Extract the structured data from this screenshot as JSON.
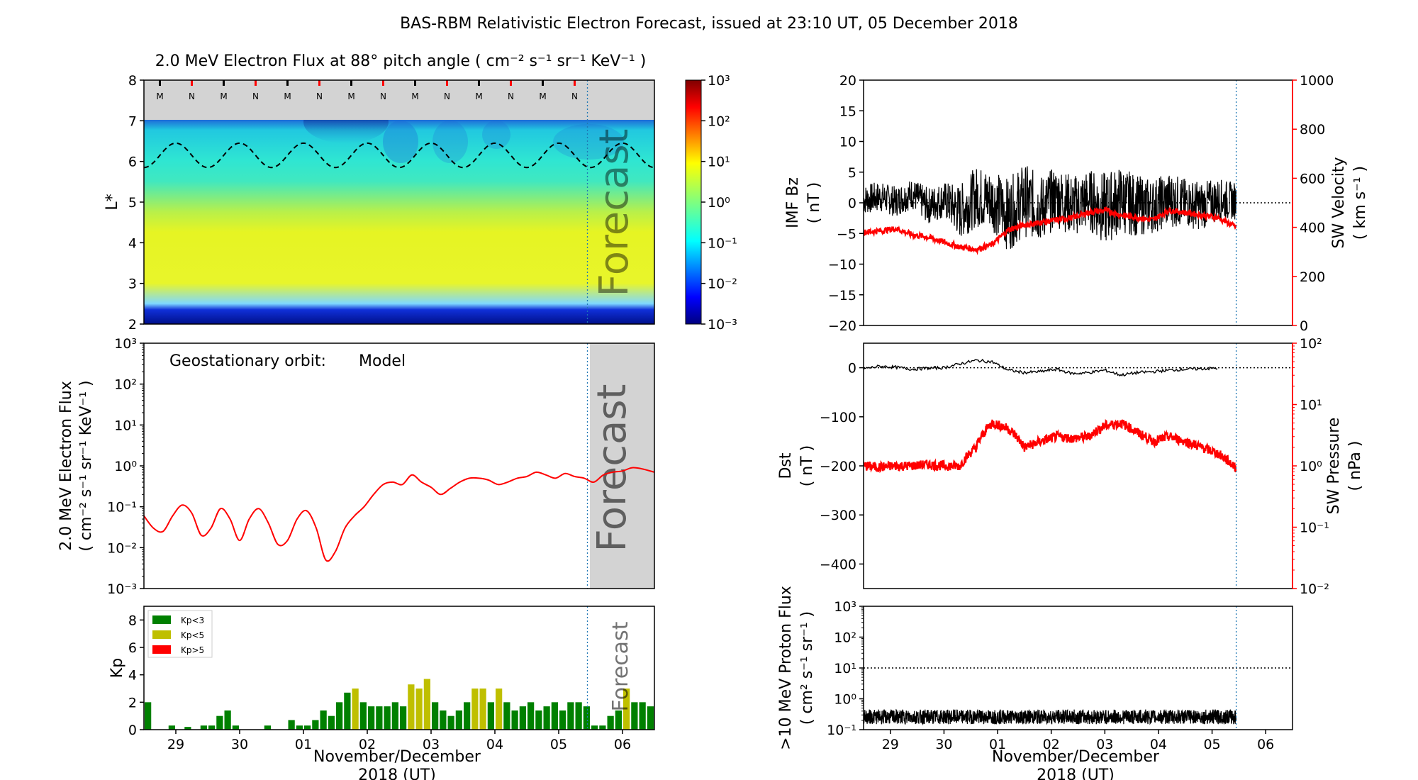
{
  "title": "BAS-RBM Relativistic Electron Forecast, issued at 23:10 UT, 05 December 2018",
  "colors": {
    "red": "#ff0000",
    "green": "#008000",
    "olive": "#bfbf00",
    "forecast_gray": "#d3d3d3",
    "line_blue": "#1f77b4"
  },
  "time_axis": {
    "ticks": [
      "29",
      "30",
      "01",
      "02",
      "03",
      "04",
      "05",
      "06"
    ],
    "label_line1": "November/December",
    "label_line2": "2018 (UT)",
    "range_days": [
      -0.5,
      7.5
    ],
    "issue_day": 6.45
  },
  "forecast_label": "Forecast",
  "panels": {
    "lstar": {
      "title": "2.0 MeV Electron Flux at 88° pitch angle ( cm⁻² s⁻¹ sr⁻¹ KeV⁻¹ )",
      "ylabel": "L*",
      "yticks": [
        "2",
        "3",
        "4",
        "5",
        "6",
        "7",
        "8"
      ],
      "mn_markers": [
        "M",
        "N",
        "M",
        "N",
        "M",
        "N",
        "M",
        "N",
        "M",
        "N",
        "M",
        "N",
        "M",
        "N"
      ],
      "colorbar_ticks": [
        "10³",
        "10²",
        "10¹",
        "10⁰",
        "10⁻¹",
        "10⁻²",
        "10⁻³"
      ]
    },
    "geo": {
      "ylabel_line1": "2.0 MeV Electron Flux",
      "ylabel_line2": "( cm⁻² s⁻¹ sr⁻¹ KeV⁻¹ )",
      "yticks": [
        "10³",
        "10²",
        "10¹",
        "10⁰",
        "10⁻¹",
        "10⁻²",
        "10⁻³"
      ],
      "annotation_prefix": "Geostationary orbit:",
      "annotation_model": "Model"
    },
    "kp": {
      "ylabel": "Kp",
      "yticks": [
        "0",
        "2",
        "4",
        "6",
        "8"
      ],
      "legend": [
        "Kp<3",
        "Kp<5",
        "Kp>5"
      ]
    },
    "imf": {
      "ylabel_line1": "IMF Bz",
      "ylabel_line2": "( nT )",
      "yticks": [
        "20",
        "15",
        "10",
        "5",
        "0",
        "−5",
        "−10",
        "−15",
        "−20"
      ],
      "right_ylabel_line1": "SW Velocity",
      "right_ylabel_line2": "( km s⁻¹ )",
      "right_yticks": [
        "1000",
        "800",
        "600",
        "400",
        "200",
        "0"
      ]
    },
    "dst": {
      "ylabel_line1": "Dst",
      "ylabel_line2": "( nT )",
      "yticks": [
        "0",
        "−100",
        "−200",
        "−300",
        "−400"
      ],
      "right_ylabel_line1": "SW Pressure",
      "right_ylabel_line2": "( nPa )",
      "right_yticks": [
        "10²",
        "10¹",
        "10⁰",
        "10⁻¹",
        "10⁻²"
      ]
    },
    "proton": {
      "ylabel_line1": ">10 MeV Proton Flux",
      "ylabel_line2": "( cm² s⁻¹ sr⁻¹ )",
      "yticks": [
        "10³",
        "10²",
        "10¹",
        "10⁰",
        "10⁻¹"
      ]
    }
  },
  "chart_data": [
    {
      "type": "heatmap",
      "name": "L* electron flux",
      "x_range_days": [
        -0.5,
        7.5
      ],
      "ylim": [
        2,
        8
      ],
      "color_scale": "log",
      "clim": [
        0.001,
        1000
      ],
      "scale": "jet",
      "features": {
        "inner_zone_L": [
          2,
          3.2
        ],
        "slot_edge_L": 3.3,
        "plateau_L": [
          3.6,
          4.6
        ],
        "model_upper_boundary_L": 7,
        "geo_orbit_L_range": [
          5.85,
          6.45
        ]
      }
    },
    {
      "type": "line",
      "name": "Geostationary orbit Model",
      "yscale": "log",
      "ylim": [
        0.001,
        1000
      ],
      "x": [
        -0.5,
        -0.35,
        -0.2,
        -0.05,
        0.1,
        0.25,
        0.4,
        0.55,
        0.7,
        0.85,
        1.0,
        1.15,
        1.3,
        1.45,
        1.6,
        1.75,
        1.9,
        2.05,
        2.2,
        2.35,
        2.5,
        2.65,
        2.8,
        2.95,
        3.1,
        3.25,
        3.4,
        3.55,
        3.7,
        3.85,
        4.0,
        4.15,
        4.3,
        4.45,
        4.6,
        4.75,
        4.9,
        5.05,
        5.2,
        5.35,
        5.5,
        5.65,
        5.8,
        5.95,
        6.1,
        6.25,
        6.4,
        6.55,
        6.7,
        6.85,
        7.0,
        7.15,
        7.3,
        7.5
      ],
      "y": [
        0.06,
        0.03,
        0.025,
        0.06,
        0.11,
        0.07,
        0.02,
        0.03,
        0.09,
        0.05,
        0.015,
        0.05,
        0.09,
        0.04,
        0.012,
        0.015,
        0.05,
        0.08,
        0.03,
        0.005,
        0.008,
        0.03,
        0.06,
        0.1,
        0.2,
        0.35,
        0.4,
        0.35,
        0.6,
        0.4,
        0.3,
        0.2,
        0.28,
        0.4,
        0.5,
        0.5,
        0.45,
        0.35,
        0.4,
        0.5,
        0.55,
        0.7,
        0.6,
        0.5,
        0.65,
        0.55,
        0.5,
        0.4,
        0.6,
        0.7,
        0.75,
        0.9,
        0.85,
        0.7
      ]
    },
    {
      "type": "bar",
      "name": "Kp",
      "bar_width_hours": 3,
      "x_start_day": -0.5,
      "values": [
        2.0,
        0.0,
        0.0,
        0.3,
        0.0,
        0.2,
        0.0,
        0.3,
        0.3,
        1.0,
        1.4,
        0.3,
        0.0,
        0.0,
        0.0,
        0.3,
        0.0,
        0.0,
        0.7,
        0.3,
        0.3,
        0.7,
        1.4,
        1.0,
        2.0,
        2.7,
        3.0,
        2.0,
        1.7,
        1.7,
        1.7,
        2.0,
        1.7,
        3.3,
        3.0,
        3.7,
        2.0,
        1.4,
        1.0,
        1.4,
        2.0,
        3.0,
        3.0,
        2.0,
        3.0,
        2.0,
        1.4,
        1.7,
        2.0,
        1.4,
        1.7,
        2.0,
        1.4,
        2.0,
        2.0,
        1.7,
        0.3,
        0.3,
        1.0,
        1.4,
        3.0,
        2.0,
        2.0,
        1.7,
        2.0,
        2.0
      ],
      "thresholds": {
        "green_below": 3,
        "olive_below": 5
      }
    },
    {
      "type": "line",
      "name": "IMF Bz / SW Velocity",
      "series": [
        {
          "name": "IMF Bz",
          "axis": "left",
          "ylim": [
            -20,
            20
          ],
          "units": "nT",
          "x": [
            -0.5,
            -0.2,
            0.1,
            0.4,
            0.7,
            1.0,
            1.3,
            1.6,
            1.9,
            2.2,
            2.5,
            2.8,
            3.1,
            3.4,
            3.7,
            4.0,
            4.3,
            4.6,
            4.9,
            5.2,
            5.5,
            5.8,
            6.1,
            6.45
          ],
          "y": [
            0.5,
            1.0,
            0.2,
            1.5,
            -0.5,
            0.5,
            -1.5,
            1.0,
            0.5,
            -2.0,
            0.5,
            -1.0,
            1.0,
            -0.5,
            0.5,
            -1.0,
            0.5,
            -0.5,
            -0.5,
            0.5,
            0.0,
            -0.5,
            0.5,
            0.3
          ],
          "envelope": [
            2.5,
            2.5,
            2.5,
            2.5,
            3.0,
            3.0,
            4.5,
            5.0,
            5.0,
            6.0,
            6.0,
            5.5,
            5.0,
            5.0,
            5.0,
            6.0,
            5.5,
            5.0,
            4.5,
            4.5,
            4.0,
            4.0,
            3.5,
            3.0
          ]
        },
        {
          "name": "SW Velocity",
          "axis": "right",
          "ylim": [
            0,
            1000
          ],
          "units": "km s⁻¹",
          "x": [
            -0.5,
            -0.2,
            0.1,
            0.4,
            0.7,
            1.0,
            1.3,
            1.6,
            1.9,
            2.2,
            2.5,
            2.8,
            3.1,
            3.4,
            3.7,
            4.0,
            4.3,
            4.6,
            4.9,
            5.2,
            5.5,
            5.8,
            6.1,
            6.45
          ],
          "y": [
            380,
            385,
            395,
            370,
            360,
            340,
            320,
            310,
            330,
            390,
            410,
            420,
            430,
            440,
            460,
            470,
            450,
            440,
            430,
            470,
            460,
            450,
            440,
            400
          ]
        }
      ]
    },
    {
      "type": "line",
      "name": "Dst / SW Pressure",
      "series": [
        {
          "name": "Dst",
          "axis": "left",
          "ylim": [
            -450,
            50
          ],
          "units": "nT",
          "x": [
            -0.5,
            -0.2,
            0.1,
            0.4,
            0.7,
            1.0,
            1.3,
            1.6,
            1.9,
            2.2,
            2.5,
            2.8,
            3.1,
            3.4,
            3.7,
            4.0,
            4.3,
            4.6,
            4.9,
            5.2,
            5.5,
            5.8,
            6.1,
            6.45
          ],
          "y": [
            -2,
            3,
            1,
            -3,
            -1,
            0,
            8,
            15,
            12,
            -5,
            -10,
            -8,
            -3,
            -12,
            -10,
            -5,
            -15,
            -10,
            -8,
            -5,
            -3,
            -2,
            -1,
            0
          ]
        },
        {
          "name": "SW Pressure",
          "axis": "right",
          "yscale": "log",
          "ylim": [
            0.01,
            100
          ],
          "units": "nPa",
          "x": [
            -0.5,
            -0.2,
            0.1,
            0.4,
            0.7,
            1.0,
            1.3,
            1.6,
            1.9,
            2.2,
            2.5,
            2.8,
            3.1,
            3.4,
            3.7,
            4.0,
            4.3,
            4.6,
            4.9,
            5.2,
            5.5,
            5.8,
            6.1,
            6.45
          ],
          "y": [
            1.0,
            0.95,
            1.0,
            1.0,
            1.05,
            1.0,
            1.0,
            2.0,
            5.0,
            4.0,
            2.0,
            2.5,
            3.0,
            2.8,
            3.0,
            4.5,
            5.0,
            3.5,
            2.5,
            3.0,
            2.5,
            2.0,
            1.6,
            0.9
          ]
        }
      ]
    },
    {
      "type": "line",
      "name": ">10 MeV Proton Flux",
      "yscale": "log",
      "ylim": [
        0.1,
        1000
      ],
      "reference_level": 10,
      "x": [
        -0.5,
        -0.2,
        0.1,
        0.4,
        0.7,
        1.0,
        1.3,
        1.6,
        1.9,
        2.2,
        2.5,
        2.8,
        3.1,
        3.4,
        3.7,
        4.0,
        4.3,
        4.6,
        4.9,
        5.2,
        5.5,
        5.8,
        6.1,
        6.45
      ],
      "y": [
        0.25,
        0.3,
        0.22,
        0.28,
        0.25,
        0.3,
        0.24,
        0.26,
        0.3,
        0.25,
        0.28,
        0.22,
        0.3,
        0.26,
        0.24,
        0.3,
        0.25,
        0.27,
        0.23,
        0.28,
        0.26,
        0.24,
        0.28,
        0.25
      ],
      "band": [
        0.15,
        0.45
      ]
    }
  ]
}
